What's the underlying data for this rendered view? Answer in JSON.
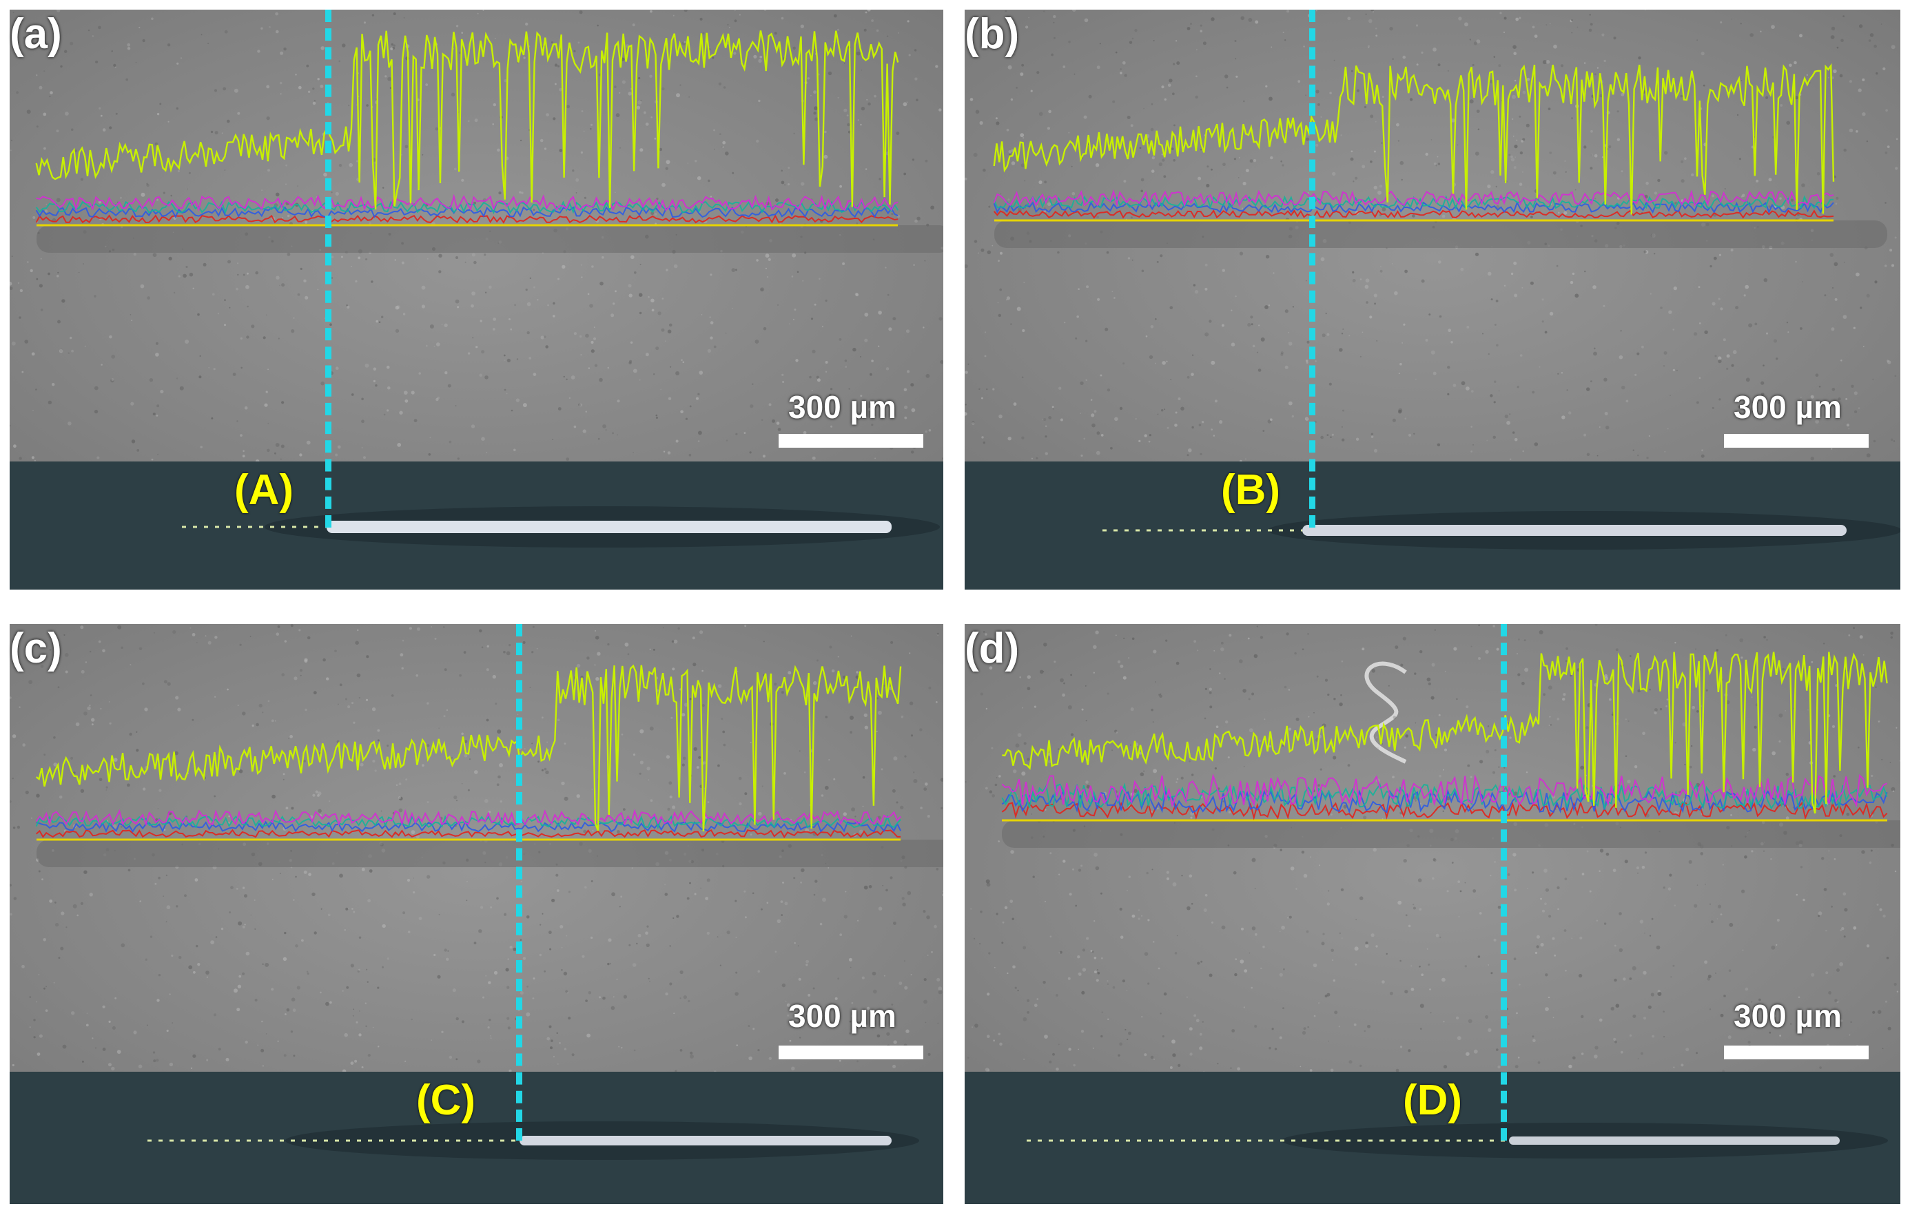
{
  "figure": {
    "panels": [
      {
        "id": "a",
        "label": "(a)",
        "critical_label": "(A)",
        "scale_text": "300 µm"
      },
      {
        "id": "b",
        "label": "(b)",
        "critical_label": "(B)",
        "scale_text": "300 µm"
      },
      {
        "id": "c",
        "label": "(c)",
        "critical_label": "(C)",
        "scale_text": "300 µm"
      },
      {
        "id": "d",
        "label": "(d)",
        "critical_label": "(D)",
        "scale_text": "300 µm"
      }
    ],
    "colors": {
      "signal_main": "#c8f000",
      "signal_red": "#e3221c",
      "signal_magenta": "#d62ad6",
      "signal_blue": "#2b5be6",
      "signal_teal": "#16b39a",
      "baseline": "#e6d400",
      "marker_line": "#22d7e6",
      "critical_label": "#ffff00",
      "sem_background": "#8a8a8a",
      "optical_background": "#2d3f45"
    }
  }
}
